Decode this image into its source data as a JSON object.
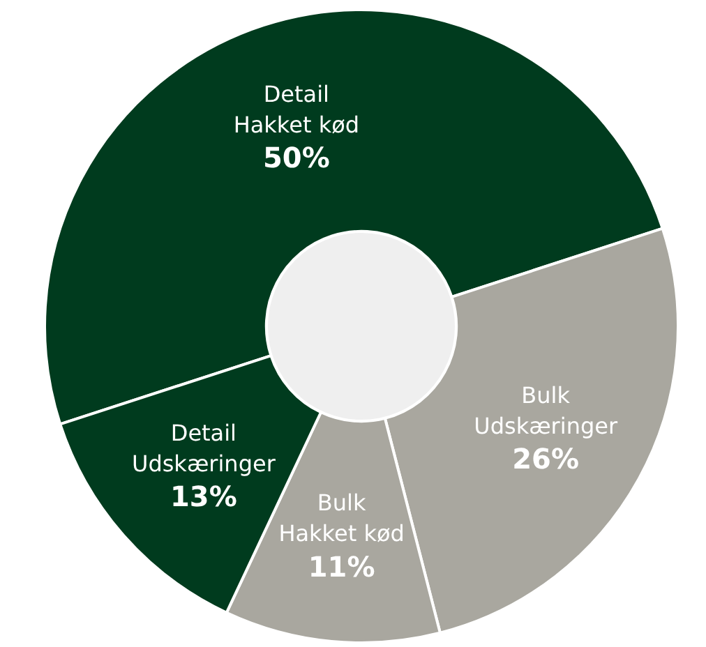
{
  "chart_data": {
    "type": "donut",
    "categories": [
      "Detail Hakket kød",
      "Bulk Udskæringer",
      "Bulk Hakket kød",
      "Detail Udskæringer"
    ],
    "values": [
      50,
      26,
      11,
      13
    ],
    "value_labels": [
      "50%",
      "26%",
      "11%",
      "13%"
    ],
    "colors": [
      "#003b1e",
      "#a9a79f",
      "#a9a79f",
      "#003b1e"
    ],
    "legend": false
  }
}
